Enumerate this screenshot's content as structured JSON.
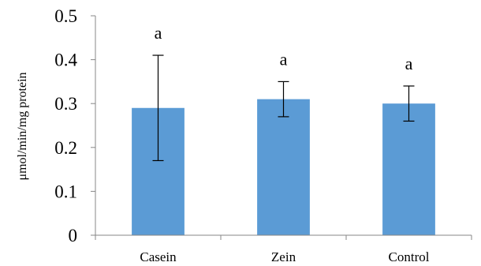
{
  "chart_data": {
    "type": "bar",
    "categories": [
      "Casein",
      "Zein",
      "Control"
    ],
    "values": [
      0.29,
      0.31,
      0.3
    ],
    "errors": [
      0.12,
      0.04,
      0.04
    ],
    "significance_labels": [
      "a",
      "a",
      "a"
    ],
    "ylabel": "μmol/min/mg protein",
    "ylim": [
      0,
      0.5
    ],
    "yticks": [
      0,
      0.1,
      0.2,
      0.3,
      0.4,
      0.5
    ],
    "ytick_labels": [
      "0",
      "0.1",
      "0.2",
      "0.3",
      "0.4",
      "0.5"
    ],
    "grid": false,
    "legend": "none",
    "colors": {
      "bar": "#5b9bd5",
      "axis": "#878787",
      "error_bar": "#000000"
    }
  }
}
